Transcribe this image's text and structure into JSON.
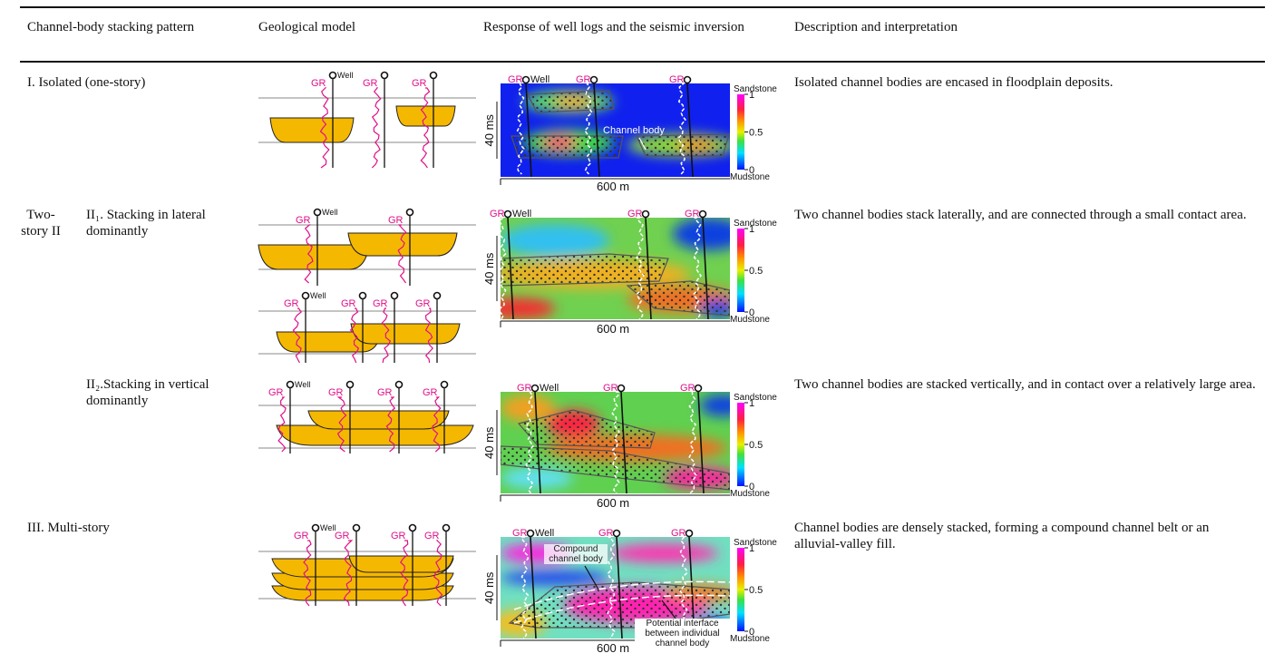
{
  "table": {
    "columns": [
      "Channel-body stacking pattern",
      "Geological model",
      "Response of well logs and the seismic inversion",
      "Description and interpretation"
    ],
    "rows": [
      {
        "pattern": "I. Isolated (one-story)",
        "description": "Isolated channel bodies are encased in floodplain deposits.",
        "annotations": [
          "Channel body"
        ]
      },
      {
        "group": "Two-story II",
        "pattern": "II₁. Stacking in lateral dominantly",
        "description": "Two channel bodies stack laterally, and are connected through a small contact area."
      },
      {
        "pattern": "II₂.Stacking in vertical dominantly",
        "description": "Two channel bodies are stacked vertically, and in contact over a relatively large area."
      },
      {
        "pattern": "III. Multi-story",
        "description": "Channel bodies are densely stacked, forming a compound channel belt or an alluvial-valley fill.",
        "annotations": [
          "Compound channel body",
          "Potential interface between individual channel body"
        ]
      }
    ]
  },
  "figure_labels": {
    "gr": "GR",
    "well": "Well",
    "sandstone": "Sandstone",
    "mudstone": "Mudstone",
    "colorbar_ticks": [
      1,
      0.5,
      0
    ],
    "time_scale": "40 ms",
    "distance_scale": "600 m"
  }
}
